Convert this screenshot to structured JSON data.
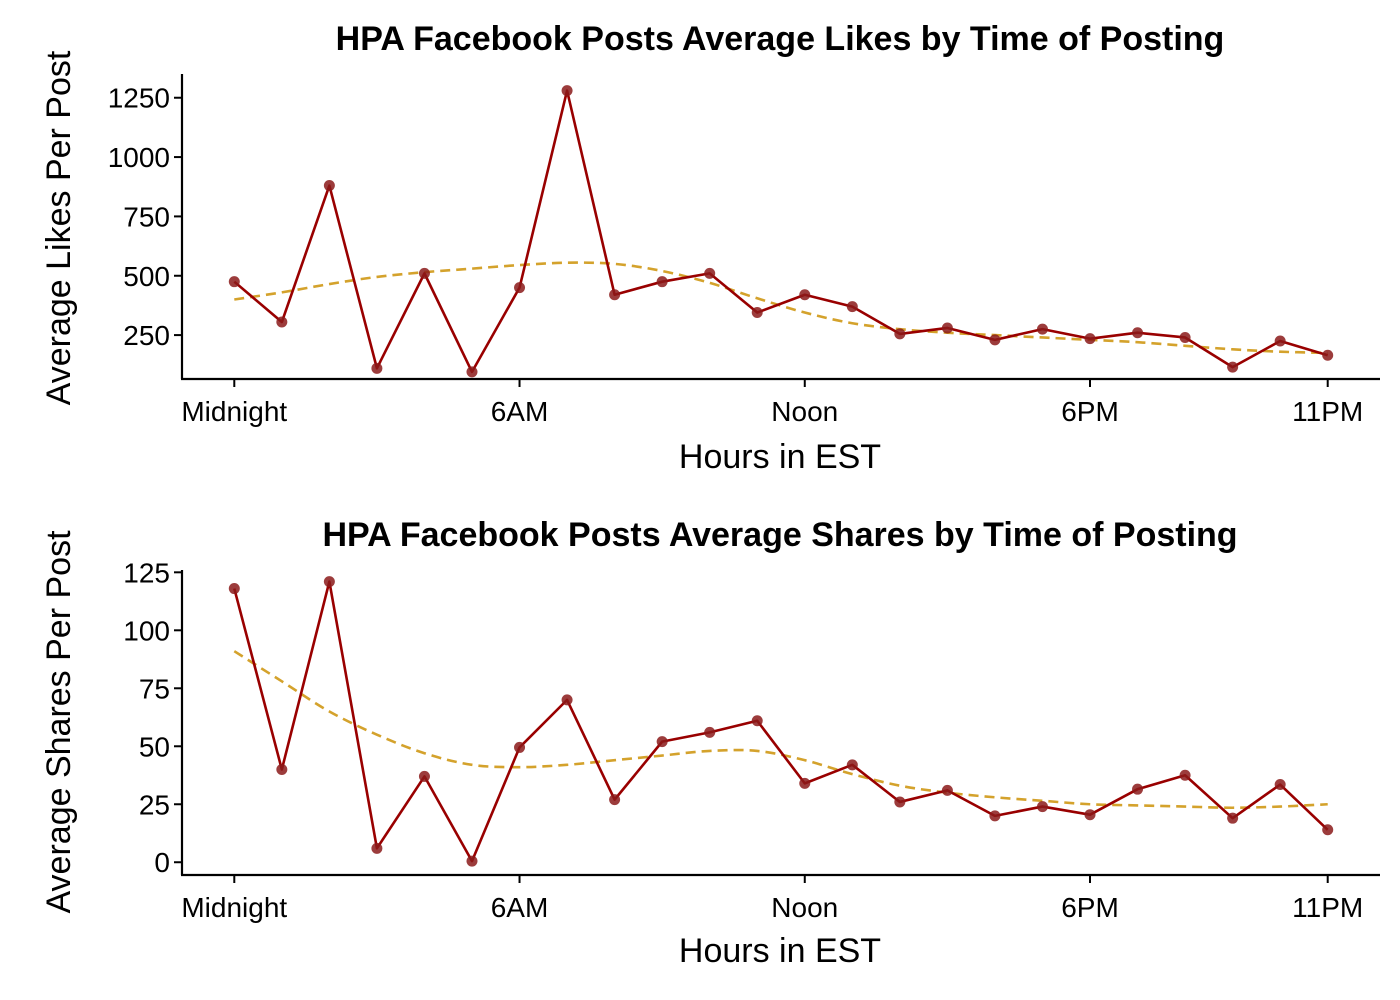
{
  "colors": {
    "series": "#990000",
    "point": "#8b1a1a",
    "trend": "#d4a22c"
  },
  "chart_data": [
    {
      "type": "line",
      "title": "HPA Facebook Posts Average Likes by Time of Posting",
      "xlabel": "Hours in EST",
      "ylabel": "Average Likes Per Post",
      "x": [
        0,
        1,
        2,
        3,
        4,
        5,
        6,
        7,
        8,
        9,
        10,
        11,
        12,
        13,
        14,
        15,
        16,
        17,
        18,
        19,
        20,
        21,
        22,
        23
      ],
      "xlim": [
        -1.1,
        24.1
      ],
      "xticks": [
        {
          "value": 0,
          "label": "Midnight"
        },
        {
          "value": 6,
          "label": "6AM"
        },
        {
          "value": 12,
          "label": "Noon"
        },
        {
          "value": 18,
          "label": "6PM"
        },
        {
          "value": 23,
          "label": "11PM"
        }
      ],
      "ylim": [
        65,
        1350
      ],
      "yticks": [
        250,
        500,
        750,
        1000,
        1250
      ],
      "series": [
        {
          "kind": "points+line",
          "values": [
            475,
            305,
            880,
            110,
            510,
            95,
            450,
            1280,
            420,
            475,
            510,
            345,
            420,
            370,
            255,
            280,
            230,
            275,
            235,
            260,
            240,
            115,
            225,
            165
          ]
        },
        {
          "kind": "trend",
          "style": "dashed",
          "values": [
            400,
            430,
            465,
            495,
            515,
            530,
            545,
            555,
            550,
            520,
            470,
            405,
            345,
            300,
            275,
            260,
            250,
            240,
            230,
            220,
            205,
            190,
            180,
            175
          ]
        }
      ],
      "grid": false,
      "legend": "none"
    },
    {
      "type": "line",
      "title": "HPA Facebook Posts Average Shares by Time of Posting",
      "xlabel": "Hours in EST",
      "ylabel": "Average Shares Per Post",
      "x": [
        0,
        1,
        2,
        3,
        4,
        5,
        6,
        7,
        8,
        9,
        10,
        11,
        12,
        13,
        14,
        15,
        16,
        17,
        18,
        19,
        20,
        21,
        22,
        23
      ],
      "xlim": [
        -1.1,
        24.1
      ],
      "xticks": [
        {
          "value": 0,
          "label": "Midnight"
        },
        {
          "value": 6,
          "label": "6AM"
        },
        {
          "value": 12,
          "label": "Noon"
        },
        {
          "value": 18,
          "label": "6PM"
        },
        {
          "value": 23,
          "label": "11PM"
        }
      ],
      "ylim": [
        -5.5,
        126
      ],
      "yticks": [
        0,
        25,
        50,
        75,
        100,
        125
      ],
      "series": [
        {
          "kind": "points+line",
          "values": [
            118,
            40,
            121,
            6,
            37,
            0.5,
            49.5,
            70,
            27,
            52,
            56,
            61,
            34,
            42,
            26,
            31,
            20,
            24,
            20.5,
            31.5,
            37.5,
            19,
            33.5,
            14
          ]
        },
        {
          "kind": "trend",
          "style": "dashed",
          "values": [
            91,
            78,
            65,
            55,
            47,
            42,
            41,
            42,
            44,
            46,
            48,
            48,
            44,
            38,
            33,
            30,
            28,
            26.5,
            25,
            24.5,
            24,
            23.5,
            24,
            25
          ]
        }
      ],
      "grid": false,
      "legend": "none"
    }
  ]
}
